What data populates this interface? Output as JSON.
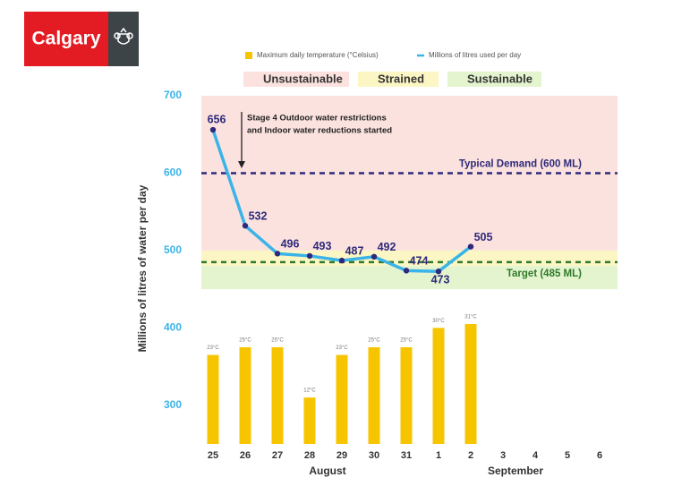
{
  "brand": "Calgary",
  "chart_data": {
    "type": "combo",
    "y_label": "Millions of litres of water per day",
    "categories": [
      "25",
      "26",
      "27",
      "28",
      "29",
      "30",
      "31",
      "1",
      "2",
      "3",
      "4",
      "5",
      "6"
    ],
    "months": [
      "August",
      "September"
    ],
    "ylim": [
      250,
      700
    ],
    "yticks": [
      300,
      400,
      500,
      600,
      700
    ],
    "y2lim": [
      0,
      90
    ],
    "series": [
      {
        "name": "Maximum daily temperature (°Celsius)",
        "type": "bar",
        "axis": "y2",
        "color": "#f7c500",
        "values": [
          23,
          25,
          25,
          12,
          23,
          25,
          25,
          30,
          31,
          null,
          null,
          null,
          null
        ],
        "value_labels": [
          "23°C",
          "25°C",
          "25°C",
          "12°C",
          "23°C",
          "25°C",
          "25°C",
          "30°C",
          "31°C",
          null,
          null,
          null,
          null
        ]
      },
      {
        "name": "Millions of litres used per day",
        "type": "line",
        "color": "#3ab4e8",
        "marker_color": "#2e2a7a",
        "values": [
          656,
          532,
          496,
          493,
          487,
          492,
          474,
          473,
          505,
          null,
          null,
          null,
          null
        ]
      }
    ],
    "zones": [
      {
        "name": "Unsustainable",
        "range": [
          500,
          700
        ],
        "color": "#fbe2df"
      },
      {
        "name": "Strained",
        "range": [
          480,
          500
        ],
        "color": "#fcf6c4"
      },
      {
        "name": "Sustainable",
        "range": [
          450,
          480
        ],
        "color": "#e4f4cf"
      }
    ],
    "reference_lines": [
      {
        "value": 600,
        "label": "Typical Demand (600 ML)",
        "color": "#2e2a7a"
      },
      {
        "value": 485,
        "label": "Target (485 ML)",
        "color": "#2f7a2a"
      }
    ],
    "annotation": [
      "Stage 4 Outdoor water restrictions",
      "and Indoor water reductions started"
    ]
  }
}
